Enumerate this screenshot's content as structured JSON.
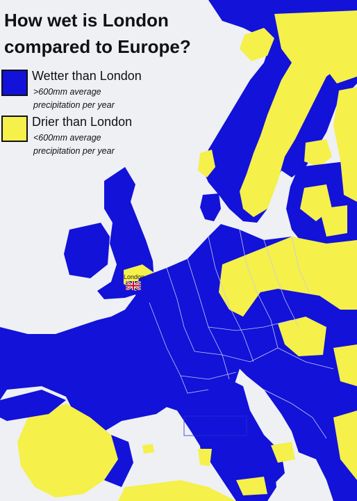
{
  "title": "How wet is London\ncompared to Europe?",
  "legend": [
    {
      "label": "Wetter than London",
      "sub": ">600mm average\nprecipitation per year",
      "color": "#1212d9"
    },
    {
      "label": "Drier than London",
      "sub": "<600mm average\nprecipitation per year",
      "color": "#f5f04a"
    }
  ],
  "city": {
    "label": "London",
    "flag_icon": "union-jack-icon"
  },
  "colors": {
    "sea": "#eef0f4",
    "wet": "#1212d9",
    "dry": "#f5f04a",
    "border": "#c8c8f0"
  }
}
